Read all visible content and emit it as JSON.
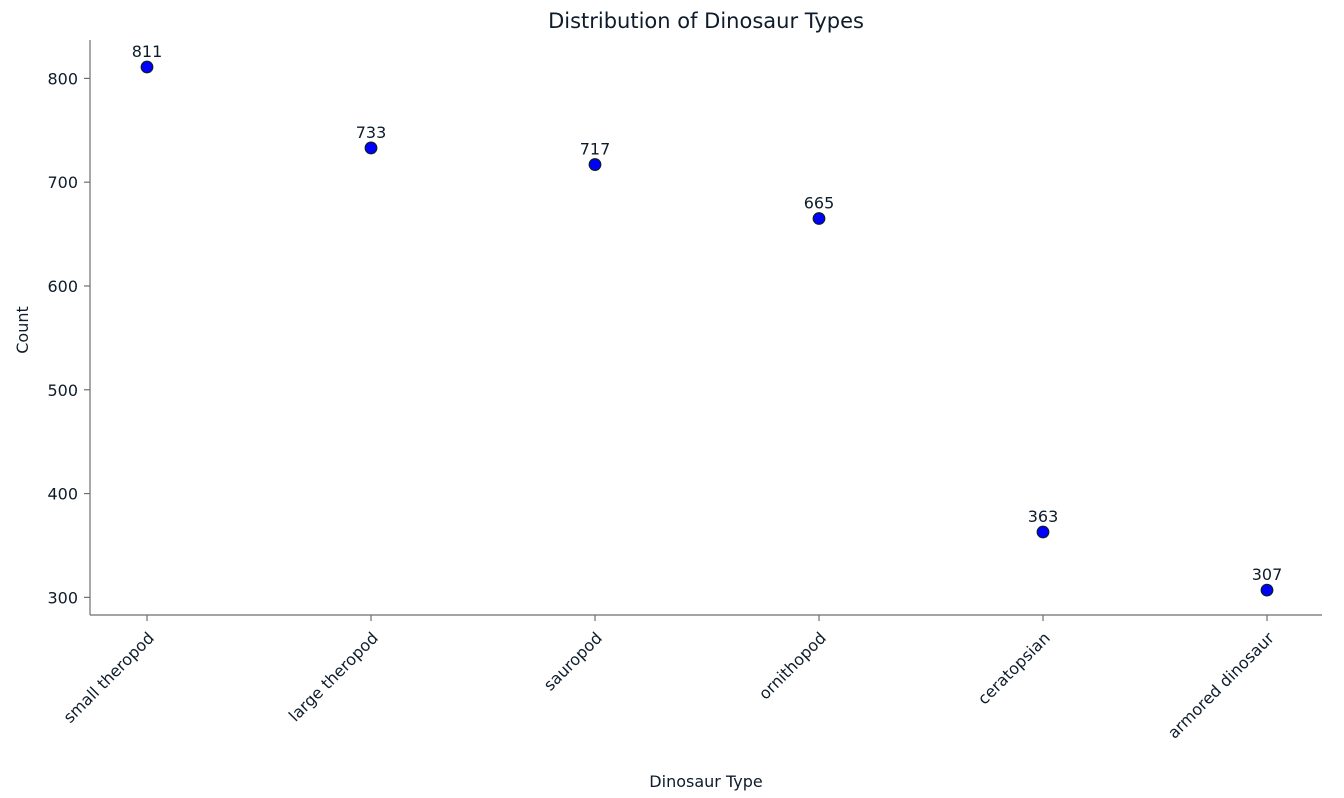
{
  "chart_data": {
    "type": "scatter",
    "title": "Distribution of Dinosaur Types",
    "xlabel": "Dinosaur Type",
    "ylabel": "Count",
    "categories": [
      "small theropod",
      "large theropod",
      "sauropod",
      "ornithopod",
      "ceratopsian",
      "armored dinosaur"
    ],
    "values": [
      811,
      733,
      717,
      665,
      363,
      307
    ],
    "y_ticks": [
      300,
      400,
      500,
      600,
      700,
      800
    ],
    "ylim": [
      283,
      837
    ],
    "grid": false,
    "legend": "none",
    "x_tick_rotation_deg": -45,
    "marker_color": "#0000ff",
    "marker_edge_color": "#0d1b2a"
  }
}
